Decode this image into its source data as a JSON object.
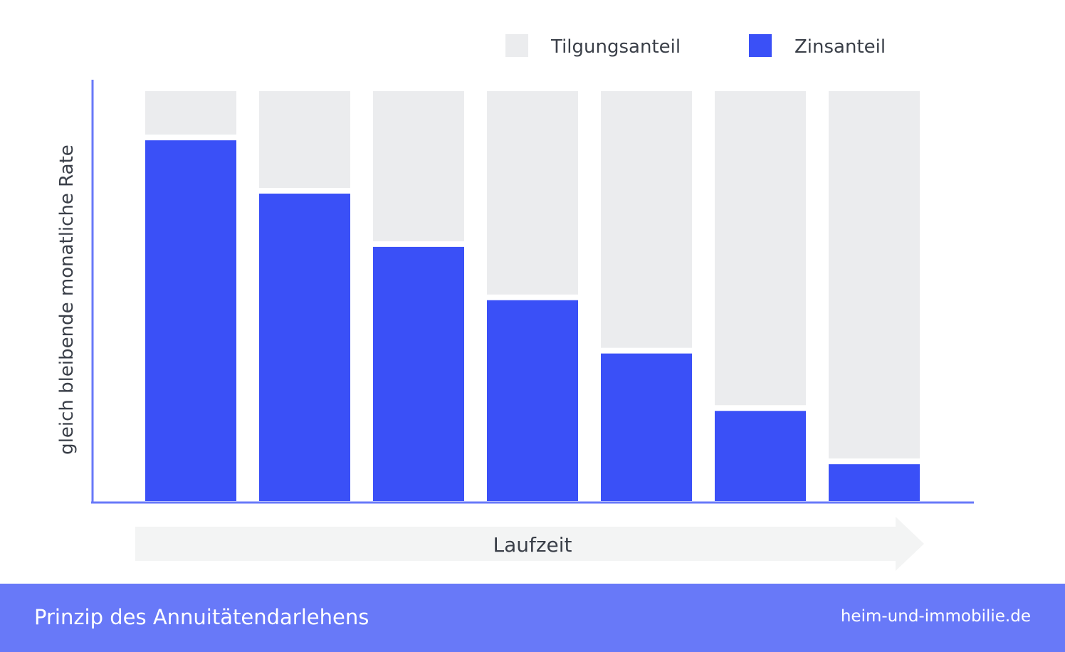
{
  "colors": {
    "zins": "#3a50f7",
    "tilgung": "#ebecee",
    "axis": "#6879f8",
    "arrow": "#f3f4f4",
    "footer": "#6879f8",
    "text": "#3a3f48"
  },
  "legend": {
    "tilgung_label": "Tilgungsanteil",
    "zins_label": "Zinsanteil"
  },
  "chart_data": {
    "type": "bar",
    "stacked": true,
    "categories": [
      "",
      "",
      "",
      "",
      "",
      "",
      ""
    ],
    "series": [
      {
        "name": "Zinsanteil",
        "values": [
          88,
          75,
          62,
          49,
          36,
          22,
          9
        ]
      },
      {
        "name": "Tilgungsanteil",
        "values": [
          12,
          25,
          38,
          51,
          64,
          78,
          91
        ]
      }
    ],
    "title": "",
    "xlabel": "Laufzeit",
    "ylabel": "gleich bleibende monatliche Rate",
    "ylim": [
      0,
      100
    ],
    "legend_position": "top-right",
    "grid": false
  },
  "footer": {
    "title": "Prinzip des Annuitätendarlehens",
    "site": "heim-und-immobilie.de"
  }
}
